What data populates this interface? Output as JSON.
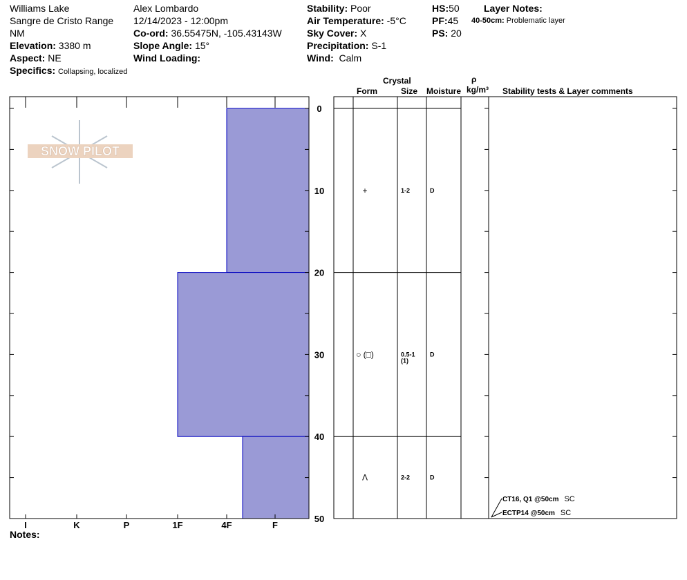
{
  "header": {
    "location": "Williams Lake",
    "range": "Sangre de Cristo Range",
    "state": "NM",
    "elevation_label": "Elevation:",
    "elevation": "3380 m",
    "aspect_label": "Aspect:",
    "aspect": "NE",
    "specifics_label": "Specifics:",
    "specifics": "Collapsing, localized",
    "observer": "Alex Lombardo",
    "datetime": "12/14/2023 - 12:00pm",
    "coord_label": "Co-ord:",
    "coord": "36.55475N, -105.43143W",
    "slope_label": "Slope Angle:",
    "slope": "15°",
    "wind_loading_label": "Wind Loading:",
    "stability_label": "Stability:",
    "stability": "Poor",
    "air_temp_label": "Air Temperature:",
    "air_temp": "-5°C",
    "sky_label": "Sky Cover:",
    "sky": "X",
    "precip_label": "Precipitation:",
    "precip": "S-1",
    "wind_label": "Wind:",
    "wind": "Calm",
    "hs_label": "HS:",
    "hs": "50",
    "pf_label": "PF:",
    "pf": "45",
    "ps_label": "PS:",
    "ps": "20",
    "layer_notes_label": "Layer Notes:",
    "layer_note_range": "40-50cm:",
    "layer_note": "Problematic layer"
  },
  "table_headers": {
    "crystal": "Crystal",
    "form": "Form",
    "size": "Size",
    "moisture": "Moisture",
    "rho": "ρ",
    "density_unit": "kg/m³",
    "comments": "Stability tests & Layer comments"
  },
  "notes_label": "Notes:",
  "logo_text": "SNOW PILOT",
  "chart_data": {
    "type": "bar",
    "orientation": "horizontal",
    "ylabel": "",
    "ylim": [
      0,
      50
    ],
    "y_ticks": [
      0,
      10,
      20,
      30,
      40,
      50
    ],
    "hardness_ticks": [
      "I",
      "K",
      "P",
      "1F",
      "4F",
      "F"
    ],
    "bar_color": "#9a9ad6",
    "layers": [
      {
        "top": 0,
        "bottom": 20,
        "hardness": "4F",
        "form": "+",
        "size": "1-2",
        "size2": "",
        "moisture": "D"
      },
      {
        "top": 20,
        "bottom": 40,
        "hardness": "1F",
        "form": "○ (□)",
        "size": "0.5-1",
        "size2": "(1)",
        "moisture": "D"
      },
      {
        "top": 40,
        "bottom": 50,
        "hardness": "4F-",
        "form": "Λ",
        "size": "2-2",
        "size2": "",
        "moisture": "D"
      }
    ],
    "tests": [
      {
        "text": "CT16, Q1 @50cm",
        "tag": "SC",
        "depth": 50
      },
      {
        "text": "ECTP14 @50cm",
        "tag": "SC",
        "depth": 50
      }
    ]
  }
}
